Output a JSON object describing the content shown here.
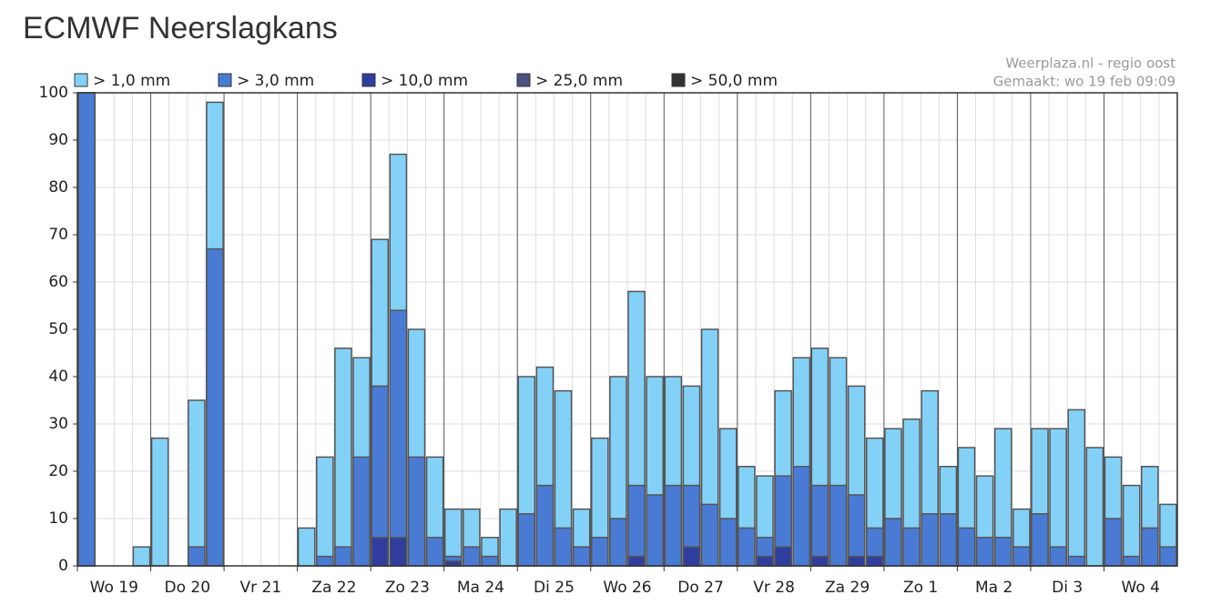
{
  "page_title": "ECMWF Neerslagkans",
  "chart_data": {
    "type": "bar",
    "overlay": true,
    "source": "Weerplaza.nl - regio oost",
    "made": "Gemaakt: wo 19 feb 09:09",
    "days": [
      "Wo 19",
      "Do 20",
      "Vr 21",
      "Za 22",
      "Zo 23",
      "Ma 24",
      "Di 25",
      "Wo 26",
      "Do 27",
      "Vr 28",
      "Za 29",
      "Zo 1",
      "Ma 2",
      "Di 3",
      "Wo 4"
    ],
    "bars_per_day": 4,
    "ylim": [
      0,
      100
    ],
    "yticks": [
      0,
      10,
      20,
      30,
      40,
      50,
      60,
      70,
      80,
      90,
      100
    ],
    "grid": true,
    "series": [
      {
        "name": "> 1,0 mm",
        "color": "#84d1f7",
        "values": [
          100,
          0,
          0,
          4,
          27,
          0,
          35,
          98,
          0,
          0,
          0,
          0,
          8,
          23,
          46,
          44,
          69,
          87,
          50,
          23,
          12,
          12,
          6,
          12,
          40,
          42,
          37,
          12,
          27,
          40,
          58,
          40,
          40,
          38,
          50,
          29,
          21,
          19,
          37,
          44,
          46,
          44,
          38,
          27,
          29,
          31,
          37,
          21,
          25,
          19,
          29,
          12,
          29,
          29,
          33,
          25,
          23,
          17,
          21,
          13
        ]
      },
      {
        "name": "> 3,0 mm",
        "color": "#4a7bd4",
        "values": [
          100,
          0,
          0,
          0,
          0,
          0,
          4,
          67,
          0,
          0,
          0,
          0,
          0,
          2,
          4,
          23,
          38,
          54,
          23,
          6,
          2,
          4,
          2,
          0,
          11,
          17,
          8,
          4,
          6,
          10,
          17,
          15,
          17,
          17,
          13,
          10,
          8,
          6,
          19,
          21,
          17,
          17,
          15,
          8,
          10,
          8,
          11,
          11,
          8,
          6,
          6,
          4,
          11,
          4,
          2,
          0,
          10,
          2,
          8,
          4
        ]
      },
      {
        "name": "> 10,0 mm",
        "color": "#2f3e9e",
        "values": [
          0,
          0,
          0,
          0,
          0,
          0,
          0,
          0,
          0,
          0,
          0,
          0,
          0,
          0,
          0,
          0,
          6,
          6,
          0,
          0,
          1,
          0,
          0,
          0,
          0,
          0,
          0,
          0,
          0,
          0,
          2,
          0,
          0,
          4,
          0,
          0,
          0,
          2,
          4,
          0,
          2,
          0,
          2,
          2,
          0,
          0,
          0,
          0,
          0,
          0,
          0,
          0,
          0,
          0,
          0,
          0,
          0,
          0,
          0,
          0
        ]
      },
      {
        "name": "> 25,0 mm",
        "color": "#4b5183",
        "values": [
          0,
          0,
          0,
          0,
          0,
          0,
          0,
          0,
          0,
          0,
          0,
          0,
          0,
          0,
          0,
          0,
          0,
          0,
          0,
          0,
          0,
          0,
          0,
          0,
          0,
          0,
          0,
          0,
          0,
          0,
          0,
          0,
          0,
          0,
          0,
          0,
          0,
          0,
          0,
          0,
          0,
          0,
          0,
          0,
          0,
          0,
          0,
          0,
          0,
          0,
          0,
          0,
          0,
          0,
          0,
          0,
          0,
          0,
          0,
          0
        ]
      },
      {
        "name": "> 50,0 mm",
        "color": "#333333",
        "values": [
          0,
          0,
          0,
          0,
          0,
          0,
          0,
          0,
          0,
          0,
          0,
          0,
          0,
          0,
          0,
          0,
          0,
          0,
          0,
          0,
          0,
          0,
          0,
          0,
          0,
          0,
          0,
          0,
          0,
          0,
          0,
          0,
          0,
          0,
          0,
          0,
          0,
          0,
          0,
          0,
          0,
          0,
          0,
          0,
          0,
          0,
          0,
          0,
          0,
          0,
          0,
          0,
          0,
          0,
          0,
          0,
          0,
          0,
          0,
          0
        ]
      }
    ]
  }
}
